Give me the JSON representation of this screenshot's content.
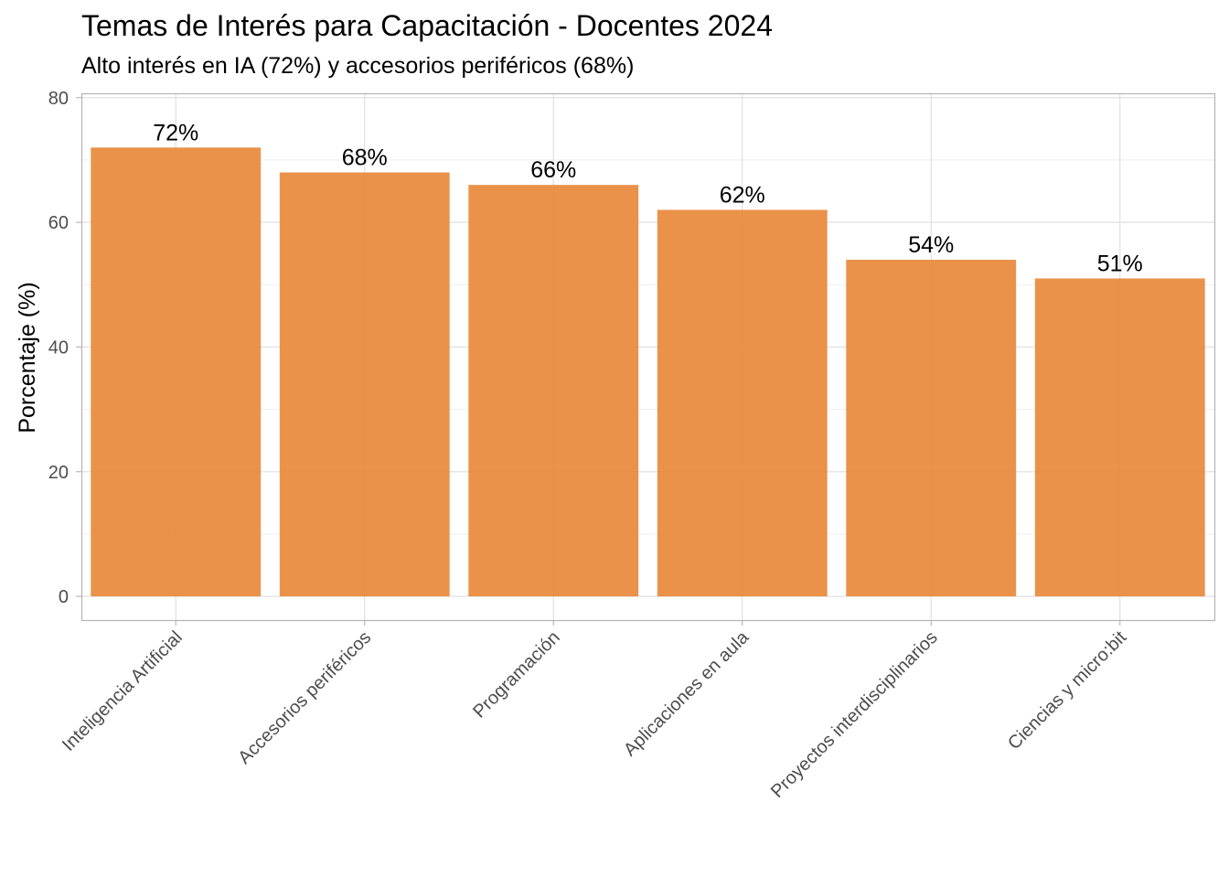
{
  "chart_data": {
    "type": "bar",
    "title": "Temas de Interés para Capacitación - Docentes 2024",
    "subtitle": "Alto interés en IA (72%) y accesorios periféricos (68%)",
    "xlabel": "",
    "ylabel": "Porcentaje (%)",
    "categories": [
      "Inteligencia Artificial",
      "Accesorios periféricos",
      "Programación",
      "Aplicaciones en aula",
      "Proyectos interdisciplinarios",
      "Ciencias y micro:bit"
    ],
    "values": [
      72,
      68,
      66,
      62,
      54,
      51
    ],
    "data_labels": [
      "72%",
      "68%",
      "66%",
      "62%",
      "54%",
      "51%"
    ],
    "y_ticks": [
      0,
      20,
      40,
      60,
      80
    ],
    "ylim": [
      -3.8,
      80.7
    ],
    "grid": true,
    "bar_color": "#E8893A"
  }
}
